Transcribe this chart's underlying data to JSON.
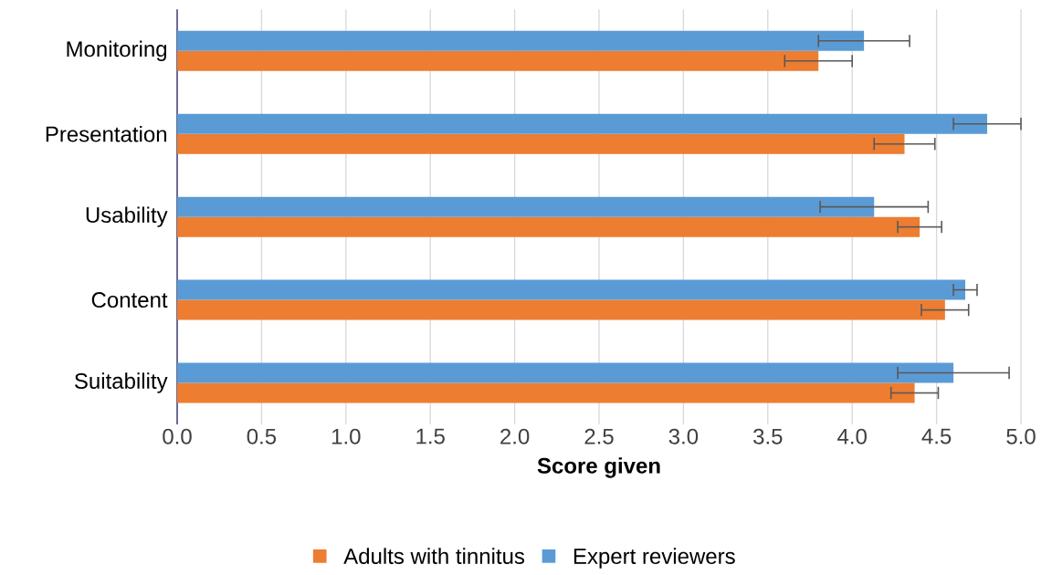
{
  "chart_data": {
    "type": "bar",
    "orientation": "horizontal",
    "xlabel": "Score given",
    "categories": [
      "Monitoring",
      "Presentation",
      "Usability",
      "Content",
      "Suitability"
    ],
    "series": [
      {
        "name": "Adults with tinnitus",
        "color": "#ed7d31",
        "values": [
          3.8,
          4.31,
          4.4,
          4.55,
          4.37
        ],
        "errors": [
          0.2,
          0.18,
          0.13,
          0.14,
          0.14
        ]
      },
      {
        "name": "Expert reviewers",
        "color": "#5b9bd5",
        "values": [
          4.07,
          4.8,
          4.13,
          4.67,
          4.6
        ],
        "errors": [
          0.27,
          0.2,
          0.32,
          0.07,
          0.33
        ]
      }
    ],
    "xlim": [
      0,
      5
    ],
    "xticks": [
      {
        "value": 0,
        "label": "0.0"
      },
      0.5,
      {
        "value": 1,
        "label": "1.0"
      },
      1.5,
      {
        "value": 2,
        "label": "2.0"
      },
      2.5,
      {
        "value": 3,
        "label": "3.0"
      },
      3.5,
      {
        "value": 4,
        "label": "4.0"
      },
      4.5,
      {
        "value": 5,
        "label": "5.0"
      }
    ],
    "grid": "x",
    "legend": "bottom"
  }
}
